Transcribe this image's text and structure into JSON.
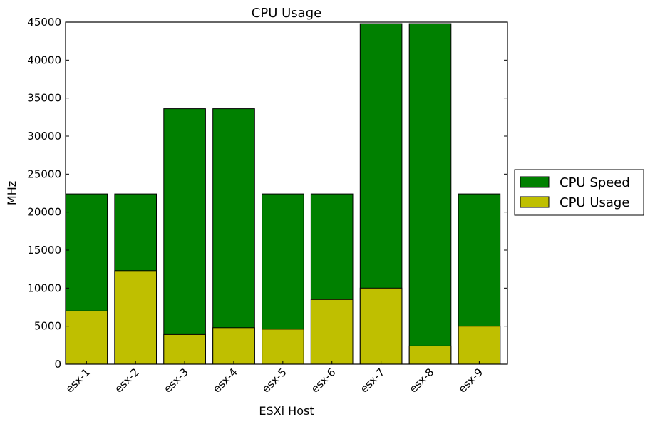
{
  "chart_data": {
    "type": "bar",
    "stacking": "overlay",
    "title": "CPU Usage",
    "xlabel": "ESXi Host",
    "ylabel": "MHz",
    "ylim": [
      0,
      45000
    ],
    "yticks": [
      0,
      5000,
      10000,
      15000,
      20000,
      25000,
      30000,
      35000,
      40000,
      45000
    ],
    "categories": [
      "esx-1",
      "esx-2",
      "esx-3",
      "esx-4",
      "esx-5",
      "esx-6",
      "esx-7",
      "esx-8",
      "esx-9"
    ],
    "series": [
      {
        "name": "CPU Speed",
        "color": "#008000",
        "values": [
          22400,
          22400,
          33600,
          33600,
          22400,
          22400,
          44800,
          44800,
          22400
        ]
      },
      {
        "name": "CPU Usage",
        "color": "#bfbf00",
        "values": [
          7000,
          12300,
          3900,
          4800,
          4600,
          8500,
          10000,
          2400,
          5000
        ]
      }
    ],
    "grid": false,
    "legend": "outside-right"
  }
}
